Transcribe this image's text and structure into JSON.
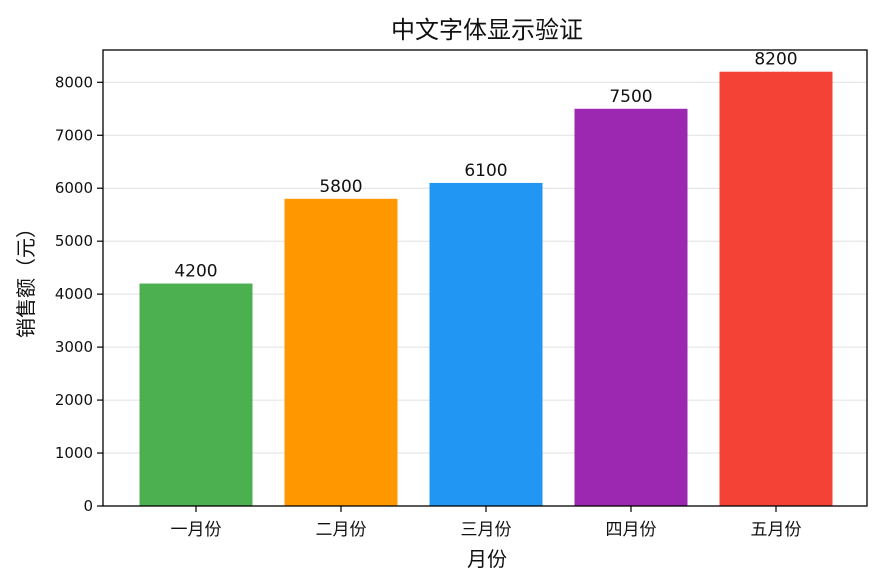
{
  "chart_data": {
    "type": "bar",
    "title": "中文字体显示验证",
    "xlabel": "月份",
    "ylabel": "销售额（元）",
    "categories": [
      "一月份",
      "二月份",
      "三月份",
      "四月份",
      "五月份"
    ],
    "values": [
      4200,
      5800,
      6100,
      7500,
      8200
    ],
    "data_labels": [
      "4200",
      "5800",
      "6100",
      "7500",
      "8200"
    ],
    "colors": [
      "#4caf50",
      "#ff9800",
      "#2196f3",
      "#9c27b0",
      "#f44336"
    ],
    "ylim": [
      0,
      8610
    ],
    "yticks": [
      0,
      1000,
      2000,
      3000,
      4000,
      5000,
      6000,
      7000,
      8000
    ],
    "grid": "y",
    "legend": "none"
  }
}
